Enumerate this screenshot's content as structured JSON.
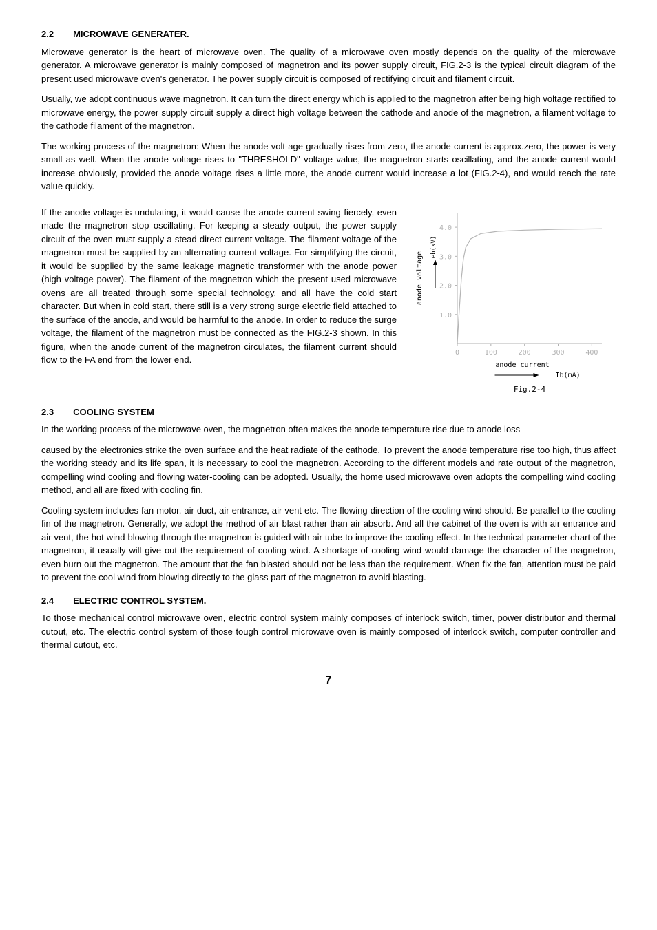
{
  "sec22": {
    "num": "2.2",
    "title": "MICROWAVE GENERATER.",
    "p1": "Microwave generator is the heart of microwave oven. The quality of a microwave oven mostly depends on the quality of the microwave generator. A microwave generator is mainly composed of magnetron and its power supply circuit, FIG.2-3 is the typical circuit diagram of the present used microwave oven's generator. The power supply circuit is composed of rectifying circuit and filament circuit.",
    "p2": "Usually, we adopt continuous wave magnetron. It can turn the direct energy which is applied to the magnetron after being high voltage rectified to microwave energy, the power supply circuit supply a direct high voltage between the cathode and anode of the magnetron, a filament voltage to the cathode filament of the magnetron.",
    "p3": "The working process of the magnetron: When the anode volt-age gradually rises from zero, the anode current is approx.zero, the power is very small as well. When the anode voltage rises to \"THRESHOLD\" voltage value, the magnetron starts oscillating, and the anode current would increase obviously, provided the anode voltage rises a little more, the anode current would increase a lot (FIG.2-4), and would reach the rate value quickly.",
    "p4": "If the anode voltage is undulating, it would cause the anode current swing fiercely, even made the magnetron stop oscillating. For keeping a steady output, the power supply circuit of the oven must supply a stead direct current voltage. The filament voltage of the magnetron must be supplied by an alternating current voltage. For simplifying the circuit, it would be supplied by the same leakage magnetic transformer with the anode power (high voltage power). The filament of the magnetron which the present used microwave ovens are all treated through some special technology, and all have the cold start character. But when in cold start, there still is a very strong surge electric field attached to the surface of the anode, and would be harmful to the anode. In order to reduce the surge voltage, the filament of the magnetron must be connected as the FIG.2-3 shown. In this figure, when the anode current of the magnetron circulates, the filament current should flow to the FA end from the lower end."
  },
  "sec23": {
    "num": "2.3",
    "title": "COOLING SYSTEM",
    "p1": "In the working process of the microwave oven, the magnetron often makes the anode temperature rise due to anode loss",
    "p2": "caused by the electronics strike the oven surface and the heat radiate of the cathode. To prevent the anode temperature rise too high, thus affect the working steady and its life span, it is necessary to cool the magnetron. According to the different models and rate output of the magnetron, compelling wind cooling and flowing water-cooling can be adopted. Usually, the home used microwave oven adopts the compelling wind cooling method, and all are fixed with cooling fin.",
    "p3": "Cooling system includes fan motor, air duct, air entrance, air vent etc. The flowing direction of the cooling wind should. Be parallel to the cooling fin of the magnetron. Generally, we adopt the method of air blast rather than air absorb. And all the cabinet of the oven is with air entrance and air vent, the hot wind blowing through the magnetron is guided with air tube to improve the cooling effect. In the technical parameter chart of the magnetron, it usually will give out the requirement of cooling wind. A shortage of cooling wind would damage the character of the magnetron, even burn out the magnetron. The amount that the fan blasted should not be less than the requirement. When fix the fan, attention must be paid to prevent the cool wind from blowing directly to the glass part of the magnetron to avoid blasting."
  },
  "sec24": {
    "num": "2.4",
    "title": "ELECTRIC CONTROL SYSTEM.",
    "p1": "To those mechanical control microwave oven, electric control system mainly composes of interlock switch, timer, power distributor and thermal cutout, etc. The electric control system of those tough control microwave oven is mainly composed of interlock switch, computer controller and thermal cutout, etc."
  },
  "chart": {
    "type": "line",
    "ylabel_outer": "anode voltage",
    "ylabel_inner": "eb(kV)",
    "xlabel": "anode current",
    "x_unit": "Ib(mA)",
    "caption": "Fig.2-4",
    "x_ticks": [
      0,
      100,
      200,
      300,
      400
    ],
    "y_ticks": [
      1.0,
      2.0,
      3.0,
      4.0
    ],
    "xlim": [
      0,
      430
    ],
    "ylim": [
      0,
      4.5
    ],
    "curve": [
      [
        0,
        0
      ],
      [
        4,
        0.8
      ],
      [
        8,
        1.5
      ],
      [
        12,
        2.2
      ],
      [
        18,
        2.9
      ],
      [
        25,
        3.3
      ],
      [
        40,
        3.6
      ],
      [
        70,
        3.78
      ],
      [
        120,
        3.86
      ],
      [
        200,
        3.9
      ],
      [
        300,
        3.93
      ],
      [
        430,
        3.95
      ]
    ],
    "axis_color": "#b0b0b0",
    "curve_color": "#b5b5b5",
    "tick_color": "#b0b0b0",
    "text_color": "#000000",
    "label_fontsize": 10,
    "tick_fontsize": 10
  },
  "page_number": "7"
}
